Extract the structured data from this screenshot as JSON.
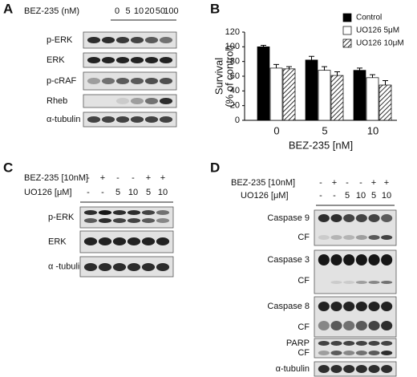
{
  "panels": {
    "A": {
      "letter": "A",
      "treatment_label": "BEZ-235 (nM)",
      "doses": [
        "0",
        "5",
        "10",
        "20",
        "50",
        "100"
      ],
      "rows": [
        "p-ERK",
        "ERK",
        "p-cRAF",
        "Rheb",
        "α-tubulin"
      ]
    },
    "C": {
      "letter": "C",
      "bez_label": "BEZ-235 [10nM]",
      "bez_signs": [
        "-",
        "+",
        "-",
        "-",
        "+",
        "+"
      ],
      "uo_label": "UO126 [μM]",
      "uo_doses": [
        "-",
        "-",
        "5",
        "10",
        "5",
        "10"
      ],
      "rows": [
        "p-ERK",
        "ERK",
        "α -tubulin"
      ]
    },
    "D": {
      "letter": "D",
      "bez_label": "BEZ-235 [10nM]",
      "bez_signs": [
        "-",
        "+",
        "-",
        "-",
        "+",
        "+"
      ],
      "uo_label": "UO126 [μM]",
      "uo_doses": [
        "-",
        "-",
        "5",
        "10",
        "5",
        "10"
      ],
      "rows": [
        "Caspase 9",
        "CF",
        "Caspase 3",
        "CF",
        "Caspase 8",
        "CF",
        "PARP",
        "CF",
        "α-tubulin"
      ]
    }
  },
  "chart_data": {
    "type": "bar",
    "panel_label": "B",
    "ylabel": [
      "Survival",
      "(% of control)"
    ],
    "xlabel": "BEZ-235 [nM]",
    "categories": [
      "0",
      "5",
      "10"
    ],
    "series": [
      {
        "name": "Control",
        "color": "#000000",
        "values": [
          100,
          82,
          68
        ],
        "errors": [
          2,
          5,
          3
        ]
      },
      {
        "name": "UO126  5μM",
        "color": "#ffffff",
        "values": [
          71,
          68,
          58
        ],
        "errors": [
          5,
          5,
          4
        ]
      },
      {
        "name": "UO126  10μM",
        "color": "#ffffff",
        "hatch": true,
        "values": [
          70,
          61,
          48
        ],
        "errors": [
          3,
          5,
          6
        ]
      }
    ],
    "ylim": [
      0,
      120
    ],
    "yticks": [
      0,
      20,
      40,
      60,
      80,
      100,
      120
    ],
    "grid": false,
    "legend": "top-right"
  }
}
